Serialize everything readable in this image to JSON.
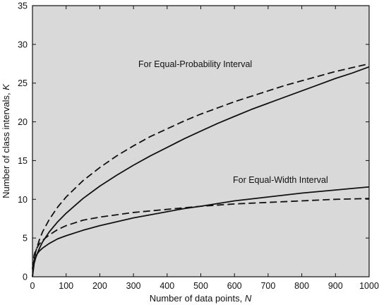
{
  "chart_data": {
    "type": "line",
    "xlabel": "Number of data points, ",
    "xlabel_var": "N",
    "ylabel": "Number of class intervals, ",
    "ylabel_var": "K",
    "xlim": [
      0,
      1000
    ],
    "ylim": [
      0,
      35
    ],
    "x_ticks": [
      0,
      100,
      200,
      300,
      400,
      500,
      600,
      700,
      800,
      900,
      1000
    ],
    "y_ticks": [
      0,
      5,
      10,
      15,
      20,
      25,
      30,
      35
    ],
    "plot_background": "#d9d9d9",
    "line_color": "#111111",
    "grid": false,
    "annotations": [
      {
        "text": "For Equal-Probability Interval"
      },
      {
        "text": "For Equal-Width Interval"
      }
    ],
    "series": [
      {
        "style": "solid",
        "x": [
          0,
          5,
          10,
          20,
          30,
          50,
          75,
          100,
          150,
          200,
          250,
          300,
          350,
          400,
          450,
          500,
          550,
          600,
          650,
          700,
          750,
          800,
          850,
          900,
          950,
          1000
        ],
        "y": [
          0,
          1.7,
          2.5,
          3.6,
          4.5,
          5.8,
          7.1,
          8.2,
          10.1,
          11.7,
          13.1,
          14.4,
          15.6,
          16.7,
          17.8,
          18.8,
          19.8,
          20.7,
          21.6,
          22.4,
          23.2,
          24.0,
          24.8,
          25.6,
          26.3,
          27.1
        ]
      },
      {
        "style": "dashed",
        "x": [
          0,
          5,
          10,
          20,
          30,
          50,
          75,
          100,
          150,
          200,
          250,
          300,
          350,
          400,
          450,
          500,
          550,
          600,
          650,
          700,
          750,
          800,
          850,
          900,
          950,
          1000
        ],
        "y": [
          0,
          2.2,
          3.3,
          4.7,
          5.8,
          7.4,
          9.0,
          10.3,
          12.4,
          14.1,
          15.6,
          16.9,
          18.1,
          19.1,
          20.1,
          21.0,
          21.8,
          22.6,
          23.3,
          24.0,
          24.7,
          25.3,
          25.9,
          26.5,
          27.0,
          27.5
        ]
      },
      {
        "style": "solid",
        "x": [
          0,
          5,
          10,
          20,
          30,
          50,
          75,
          100,
          150,
          200,
          250,
          300,
          350,
          400,
          450,
          500,
          600,
          700,
          800,
          900,
          1000
        ],
        "y": [
          1.0,
          2.2,
          2.7,
          3.3,
          3.7,
          4.3,
          4.9,
          5.3,
          6.0,
          6.6,
          7.1,
          7.6,
          8.0,
          8.4,
          8.8,
          9.1,
          9.8,
          10.3,
          10.8,
          11.2,
          11.6
        ]
      },
      {
        "style": "dashed",
        "x": [
          0,
          5,
          10,
          20,
          30,
          50,
          75,
          100,
          150,
          200,
          250,
          300,
          350,
          400,
          450,
          500,
          600,
          700,
          800,
          900,
          1000
        ],
        "y": [
          1.0,
          2.8,
          3.5,
          4.2,
          4.7,
          5.4,
          6.1,
          6.6,
          7.3,
          7.7,
          8.0,
          8.3,
          8.5,
          8.7,
          8.9,
          9.1,
          9.4,
          9.6,
          9.8,
          10.0,
          10.1
        ]
      }
    ]
  }
}
